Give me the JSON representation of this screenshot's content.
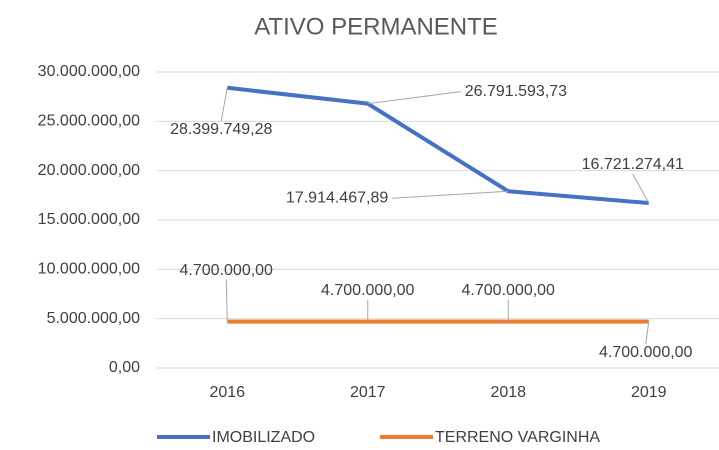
{
  "chart_data": {
    "type": "line",
    "title": "ATIVO PERMANENTE",
    "categories": [
      "2016",
      "2017",
      "2018",
      "2019"
    ],
    "series": [
      {
        "name": "IMOBILIZADO",
        "color": "#4472c4",
        "values": [
          28399749.28,
          26791593.73,
          17914467.89,
          16721274.41
        ],
        "value_labels": [
          "28.399.749,28",
          "26.791.593,73",
          "17.914.467,89",
          "16.721.274,41"
        ]
      },
      {
        "name": "TERRENO VARGINHA",
        "color": "#ed7d31",
        "values": [
          4700000,
          4700000,
          4700000,
          4700000
        ],
        "value_labels": [
          "4.700.000,00",
          "4.700.000,00",
          "4.700.000,00",
          "4.700.000,00"
        ]
      }
    ],
    "ylim": [
      0,
      30000000
    ],
    "yticks": [
      {
        "value": 0,
        "label": "0,00"
      },
      {
        "value": 5000000,
        "label": "5.000.000,00"
      },
      {
        "value": 10000000,
        "label": "10.000.000,00"
      },
      {
        "value": 15000000,
        "label": "15.000.000,00"
      },
      {
        "value": 20000000,
        "label": "20.000.000,00"
      },
      {
        "value": 25000000,
        "label": "25.000.000,00"
      },
      {
        "value": 30000000,
        "label": "30.000.000,00"
      }
    ],
    "grid": true,
    "legend": "bottom"
  }
}
